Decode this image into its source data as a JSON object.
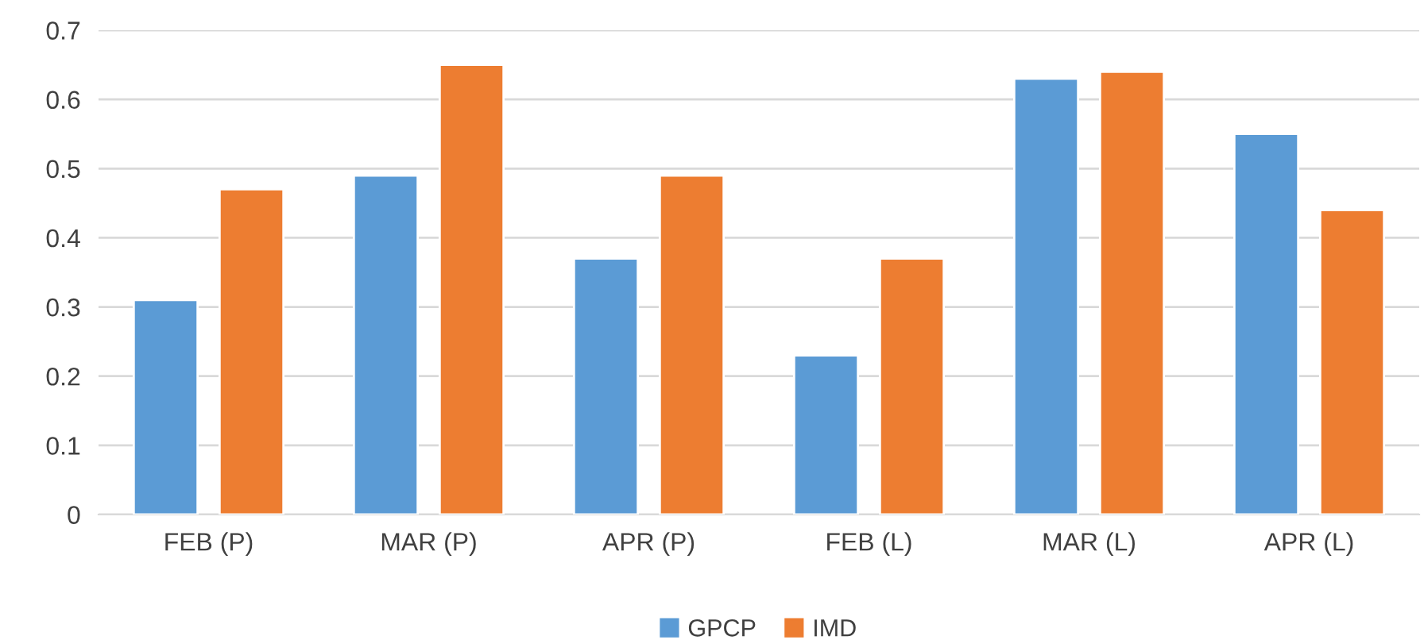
{
  "chart_data": {
    "type": "bar",
    "categories": [
      "FEB (P)",
      "MAR (P)",
      "APR (P)",
      "FEB (L)",
      "MAR (L)",
      "APR (L)"
    ],
    "series": [
      {
        "name": "GPCP",
        "color": "#5b9bd5",
        "values": [
          0.31,
          0.49,
          0.37,
          0.23,
          0.63,
          0.55
        ]
      },
      {
        "name": "IMD",
        "color": "#ed7d31",
        "values": [
          0.47,
          0.65,
          0.49,
          0.37,
          0.64,
          0.44
        ]
      }
    ],
    "ylim": [
      0,
      0.7
    ],
    "yticks": [
      0,
      0.1,
      0.2,
      0.3,
      0.4,
      0.5,
      0.6,
      0.7
    ],
    "grid": "y",
    "legend": "bottom"
  }
}
